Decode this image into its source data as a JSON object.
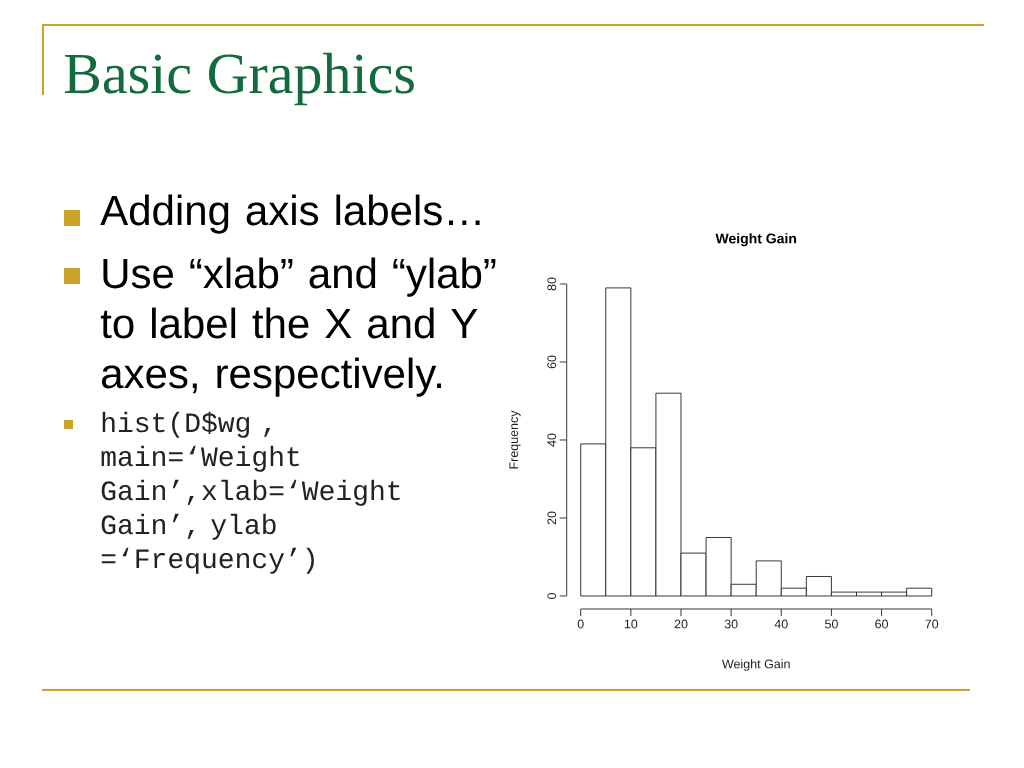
{
  "chart_data": {
    "type": "histogram",
    "title": "Weight Gain",
    "xlabel": "Weight Gain",
    "ylabel": "Frequency",
    "bins": [
      0,
      5,
      10,
      15,
      20,
      25,
      30,
      35,
      40,
      45,
      50,
      55,
      60,
      65,
      70
    ],
    "values": [
      39,
      79,
      38,
      52,
      11,
      15,
      3,
      9,
      2,
      5,
      1,
      1,
      1,
      2
    ],
    "color": "#ffffff",
    "xlim": [
      0,
      70
    ],
    "ylim": [
      0,
      80
    ],
    "xticks": [
      0,
      10,
      20,
      30,
      40,
      50,
      60,
      70
    ],
    "yticks": [
      0,
      20,
      40,
      60,
      80
    ],
    "annotations": [
      "Basic Graphics",
      "Adding axis labels…",
      "Use “xlab” and “ylab” to label the X and Y axes, respectively.",
      "hist(D$wg , main=‘Weight Gain’,xlab=‘Weight Gain’, ylab =‘Frequency’)"
    ]
  }
}
